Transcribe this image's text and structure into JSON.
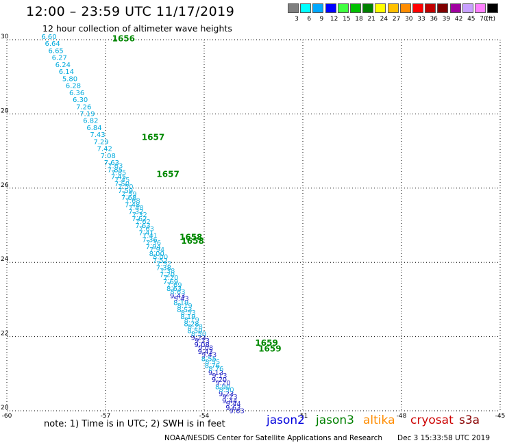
{
  "header": {
    "title": "12:00 – 23:59 UTC 11/17/2019",
    "subtitle": "12 hour collection of altimeter wave heights"
  },
  "colorbar": {
    "unit": "(ft)",
    "items": [
      {
        "label": "3",
        "color": "#808080"
      },
      {
        "label": "6",
        "color": "#00ffff"
      },
      {
        "label": "9",
        "color": "#00a8ff"
      },
      {
        "label": "12",
        "color": "#0000ff"
      },
      {
        "label": "15",
        "color": "#40ff40"
      },
      {
        "label": "18",
        "color": "#00c000"
      },
      {
        "label": "21",
        "color": "#008000"
      },
      {
        "label": "24",
        "color": "#ffff00"
      },
      {
        "label": "27",
        "color": "#ffc000"
      },
      {
        "label": "30",
        "color": "#ff8c00"
      },
      {
        "label": "33",
        "color": "#ff0000"
      },
      {
        "label": "36",
        "color": "#c00000"
      },
      {
        "label": "39",
        "color": "#800000"
      },
      {
        "label": "42",
        "color": "#a000a0"
      },
      {
        "label": "45",
        "color": "#c8a0ff"
      },
      {
        "label": "70",
        "color": "#ff80ff"
      },
      {
        "label": "",
        "color": "#000000"
      }
    ]
  },
  "chart_data": {
    "type": "scatter",
    "title": "12:00 – 23:59 UTC 11/17/2019",
    "subtitle": "12 hour collection of altimeter wave heights",
    "xlim": [
      -60,
      -45
    ],
    "ylim": [
      20,
      30
    ],
    "x_ticks": [
      "-60",
      "-57",
      "-54",
      "-51",
      "-48",
      "-45"
    ],
    "y_ticks": [
      "20",
      "22",
      "24",
      "26",
      "28",
      "30"
    ],
    "grid": true,
    "track": {
      "start": {
        "lon": -58.95,
        "lat": 30.0
      },
      "end": {
        "lon": -53.35,
        "lat": 20.0
      },
      "secondary_offset_lon": 0.45
    },
    "wave_heights_ft": [
      "6.60",
      "6.64",
      "6.65",
      "6.27",
      "6.24",
      "6.14",
      "5.80",
      "6.28",
      "6.36",
      "6.30",
      "7.26",
      "7.19",
      "6.82",
      "6.84",
      "7.43",
      "7.29",
      "7.42",
      "7.08",
      "7.63",
      "7.85",
      "7.45",
      "7.50",
      "7.59",
      "7.68",
      "7.48",
      "7.32",
      "7.62",
      "7.63",
      "7.41",
      "7.36",
      "7.94",
      "8.00",
      "7.52",
      "7.38",
      "7.20",
      "7.69",
      "8.63",
      "9.43",
      "8.19",
      "8.53",
      "8.19",
      "8.28",
      "8.50",
      "9.23",
      "9.08",
      "9.43",
      "8.55",
      "8.76",
      "9.13",
      "9.20",
      "8.90",
      "9.23",
      "9.44",
      "9.63"
    ],
    "time_labels": [
      {
        "text": "1656",
        "lon": -56.8,
        "lat": 29.95
      },
      {
        "text": "1657",
        "lon": -55.9,
        "lat": 27.3
      },
      {
        "text": "1657",
        "lon": -55.45,
        "lat": 26.3
      },
      {
        "text": "1658",
        "lon": -54.75,
        "lat": 24.6
      },
      {
        "text": "1658",
        "lon": -54.7,
        "lat": 24.5
      },
      {
        "text": "1659",
        "lon": -52.45,
        "lat": 21.75
      },
      {
        "text": "1659",
        "lon": -52.35,
        "lat": 21.6
      }
    ]
  },
  "satellites": [
    {
      "name": "jason2",
      "color": "#0000dd"
    },
    {
      "name": "jason3",
      "color": "#008000"
    },
    {
      "name": "altika",
      "color": "#ff8c00"
    },
    {
      "name": "cryosat",
      "color": "#cc0000"
    },
    {
      "name": "s3a",
      "color": "#880000"
    }
  ],
  "footer": {
    "note": "note: 1) Time is in UTC; 2) SWH is in feet",
    "credit": "NOAA/NESDIS Center for Satellite Applications and Research",
    "timestamp": "Dec  3 15:33:58 UTC 2019"
  }
}
